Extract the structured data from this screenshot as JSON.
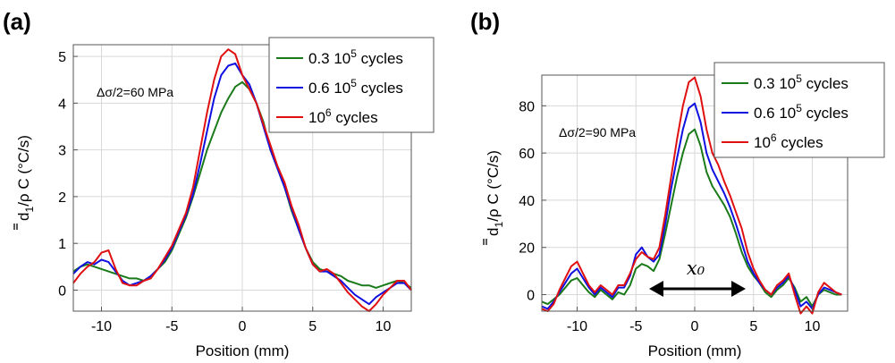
{
  "chart_data": [
    {
      "type": "line",
      "panel_label": "(a)",
      "annotation": "Δσ/2=60 MPa",
      "xlabel": "Position (mm)",
      "ylabel_main": "d",
      "ylabel_sub": "1",
      "ylabel_rest": "/ρ C (°C/s)",
      "xlim": [
        -12,
        12
      ],
      "ylim": [
        -0.45,
        5.25
      ],
      "xticks": [
        -10,
        -5,
        0,
        5,
        10
      ],
      "yticks": [
        0,
        1,
        2,
        3,
        4,
        5
      ],
      "grid": true,
      "legend_position": "top-right",
      "series": [
        {
          "name_pre": "0.3 10",
          "name_sup": "5",
          "name_post": " cycles",
          "color": "#1a7a1a",
          "x": [
            -12,
            -11.5,
            -11,
            -10.5,
            -10,
            -9.5,
            -9,
            -8.5,
            -8,
            -7.5,
            -7,
            -6.5,
            -6,
            -5.5,
            -5,
            -4.5,
            -4,
            -3.5,
            -3,
            -2.5,
            -2,
            -1.5,
            -1,
            -0.5,
            0,
            0.5,
            1,
            1.5,
            2,
            2.5,
            3,
            3.5,
            4,
            4.5,
            5,
            5.5,
            6,
            6.5,
            7,
            7.5,
            8,
            8.5,
            9,
            9.5,
            10,
            10.5,
            11,
            11.5,
            12
          ],
          "values": [
            0.4,
            0.5,
            0.55,
            0.5,
            0.45,
            0.4,
            0.35,
            0.3,
            0.25,
            0.25,
            0.2,
            0.3,
            0.45,
            0.6,
            0.85,
            1.2,
            1.55,
            2.0,
            2.5,
            3.0,
            3.4,
            3.8,
            4.1,
            4.35,
            4.45,
            4.3,
            4.0,
            3.6,
            3.0,
            2.6,
            2.2,
            1.7,
            1.3,
            0.9,
            0.6,
            0.45,
            0.4,
            0.35,
            0.3,
            0.2,
            0.15,
            0.1,
            0.1,
            0.05,
            0.1,
            0.15,
            0.2,
            0.15,
            0.05
          ]
        },
        {
          "name_pre": "0.6 10",
          "name_sup": "5",
          "name_post": " cycles",
          "color": "#1010e0",
          "x": [
            -12,
            -11.5,
            -11,
            -10.5,
            -10,
            -9.5,
            -9,
            -8.5,
            -8,
            -7.5,
            -7,
            -6.5,
            -6,
            -5.5,
            -5,
            -4.5,
            -4,
            -3.5,
            -3,
            -2.5,
            -2,
            -1.5,
            -1,
            -0.5,
            0,
            0.5,
            1,
            1.5,
            2,
            2.5,
            3,
            3.5,
            4,
            4.5,
            5,
            5.5,
            6,
            6.5,
            7,
            7.5,
            8,
            8.5,
            9,
            9.5,
            10,
            10.5,
            11,
            11.5,
            12
          ],
          "values": [
            0.35,
            0.5,
            0.6,
            0.55,
            0.65,
            0.6,
            0.4,
            0.2,
            0.1,
            0.15,
            0.2,
            0.3,
            0.45,
            0.65,
            0.9,
            1.25,
            1.6,
            2.05,
            2.7,
            3.4,
            4.1,
            4.6,
            4.8,
            4.85,
            4.6,
            4.4,
            4.0,
            3.5,
            3.0,
            2.6,
            2.2,
            1.75,
            1.3,
            0.9,
            0.55,
            0.4,
            0.4,
            0.3,
            0.2,
            0.05,
            -0.1,
            -0.2,
            -0.3,
            -0.15,
            -0.05,
            0.05,
            0.15,
            0.15,
            0.0
          ]
        },
        {
          "name_pre": "10",
          "name_sup": "6",
          "name_post": " cycles",
          "color": "#e01010",
          "x": [
            -12,
            -11.5,
            -11,
            -10.5,
            -10,
            -9.5,
            -9,
            -8.5,
            -8,
            -7.5,
            -7,
            -6.5,
            -6,
            -5.5,
            -5,
            -4.5,
            -4,
            -3.5,
            -3,
            -2.5,
            -2,
            -1.5,
            -1,
            -0.5,
            0,
            0.5,
            1,
            1.5,
            2,
            2.5,
            3,
            3.5,
            4,
            4.5,
            5,
            5.5,
            6,
            6.5,
            7,
            7.5,
            8,
            8.5,
            9,
            9.5,
            10,
            10.5,
            11,
            11.5,
            12
          ],
          "values": [
            0.15,
            0.35,
            0.5,
            0.6,
            0.8,
            0.85,
            0.45,
            0.15,
            0.1,
            0.1,
            0.2,
            0.25,
            0.45,
            0.7,
            0.95,
            1.3,
            1.65,
            2.2,
            3.0,
            3.8,
            4.5,
            5.0,
            5.15,
            5.05,
            4.6,
            4.3,
            4.0,
            3.55,
            3.1,
            2.65,
            2.3,
            1.8,
            1.4,
            0.9,
            0.55,
            0.4,
            0.45,
            0.35,
            0.15,
            -0.05,
            -0.2,
            -0.35,
            -0.45,
            -0.3,
            -0.1,
            0.05,
            0.2,
            0.2,
            0.0
          ]
        }
      ]
    },
    {
      "type": "line",
      "panel_label": "(b)",
      "annotation": "Δσ/2=90 MPa",
      "arrow_label": "x₀",
      "xlabel": "Position (mm)",
      "ylabel_main": "d",
      "ylabel_sub": "1",
      "ylabel_rest": "/ρ C (°C/s)",
      "xlim": [
        -13,
        13
      ],
      "ylim": [
        -7,
        93
      ],
      "xticks": [
        -10,
        -5,
        0,
        5,
        10
      ],
      "yticks": [
        0,
        20,
        40,
        60,
        80
      ],
      "grid": true,
      "legend_position": "top-right",
      "series": [
        {
          "name_pre": "0.3 10",
          "name_sup": "5",
          "name_post": " cycles",
          "color": "#1a7a1a",
          "x": [
            -13,
            -12.5,
            -12,
            -11.5,
            -11,
            -10.5,
            -10,
            -9.5,
            -9,
            -8.5,
            -8,
            -7.5,
            -7,
            -6.5,
            -6,
            -5.5,
            -5,
            -4.5,
            -4,
            -3.5,
            -3,
            -2.5,
            -2,
            -1.5,
            -1,
            -0.5,
            0,
            0.5,
            1,
            1.5,
            2,
            2.5,
            3,
            3.5,
            4,
            4.5,
            5,
            5.5,
            6,
            6.5,
            7,
            7.5,
            8,
            8.5,
            9,
            9.5,
            10,
            10.5,
            11,
            11.5,
            12,
            12.5
          ],
          "values": [
            -3,
            -4,
            -2,
            0,
            3,
            6,
            7,
            4,
            1,
            -1,
            2,
            0,
            -2,
            1,
            0,
            4,
            11,
            13,
            12,
            10,
            15,
            26,
            38,
            50,
            60,
            68,
            70,
            63,
            52,
            46,
            42,
            38,
            33,
            26,
            18,
            12,
            8,
            5,
            1,
            -1,
            2,
            4,
            7,
            3,
            -3,
            -1,
            -5,
            0,
            2,
            1,
            0,
            0
          ]
        },
        {
          "name_pre": "0.6 10",
          "name_sup": "5",
          "name_post": " cycles",
          "color": "#1010e0",
          "x": [
            -13,
            -12.5,
            -12,
            -11.5,
            -11,
            -10.5,
            -10,
            -9.5,
            -9,
            -8.5,
            -8,
            -7.5,
            -7,
            -6.5,
            -6,
            -5.5,
            -5,
            -4.5,
            -4,
            -3.5,
            -3,
            -2.5,
            -2,
            -1.5,
            -1,
            -0.5,
            0,
            0.5,
            1,
            1.5,
            2,
            2.5,
            3,
            3.5,
            4,
            4.5,
            5,
            5.5,
            6,
            6.5,
            7,
            7.5,
            8,
            8.5,
            9,
            9.5,
            10,
            10.5,
            11,
            11.5,
            12,
            12.5
          ],
          "values": [
            -5,
            -6,
            -3,
            1,
            5,
            9,
            11,
            7,
            3,
            0,
            3,
            1,
            -1,
            3,
            3,
            8,
            17,
            20,
            16,
            14,
            17,
            30,
            45,
            58,
            70,
            79,
            81,
            73,
            60,
            53,
            48,
            43,
            37,
            30,
            22,
            14,
            9,
            5,
            2,
            0,
            3,
            5,
            8,
            2,
            -5,
            -3,
            -6,
            0,
            3,
            2,
            1,
            0
          ]
        },
        {
          "name_pre": "10",
          "name_sup": "6",
          "name_post": " cycles",
          "color": "#e01010",
          "x": [
            -13,
            -12.5,
            -12,
            -11.5,
            -11,
            -10.5,
            -10,
            -9.5,
            -9,
            -8.5,
            -8,
            -7.5,
            -7,
            -6.5,
            -6,
            -5.5,
            -5,
            -4.5,
            -4,
            -3.5,
            -3,
            -2.5,
            -2,
            -1.5,
            -1,
            -0.5,
            0,
            0.5,
            1,
            1.5,
            2,
            2.5,
            3,
            3.5,
            4,
            4.5,
            5,
            5.5,
            6,
            6.5,
            7,
            7.5,
            8,
            8.5,
            9,
            9.5,
            10,
            10.5,
            11,
            11.5,
            12,
            12.5
          ],
          "values": [
            -6,
            -7,
            -4,
            2,
            7,
            12,
            14,
            9,
            4,
            1,
            4,
            2,
            0,
            4,
            4,
            9,
            15,
            18,
            16,
            15,
            20,
            34,
            50,
            66,
            80,
            90,
            92,
            84,
            70,
            60,
            55,
            48,
            42,
            35,
            28,
            18,
            11,
            6,
            2,
            0,
            4,
            6,
            9,
            0,
            -8,
            -5,
            -8,
            1,
            5,
            3,
            1,
            0
          ]
        }
      ]
    }
  ]
}
